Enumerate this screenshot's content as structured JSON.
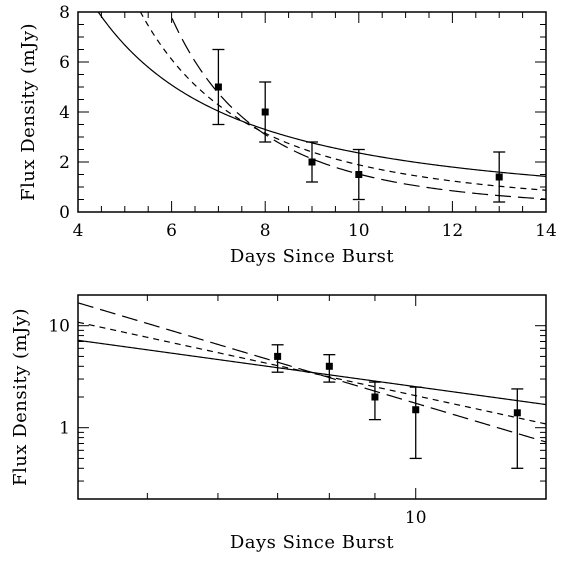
{
  "chart_data": [
    {
      "type": "scatter",
      "xlabel": "Days Since Burst",
      "ylabel": "Flux Density (mJy)",
      "xlim": [
        4,
        14
      ],
      "ylim": [
        0,
        8
      ],
      "xscale": "linear",
      "yscale": "linear",
      "x_ticks": [
        4,
        6,
        8,
        10,
        12,
        14
      ],
      "y_ticks": [
        0,
        2,
        4,
        6,
        8
      ],
      "points": [
        {
          "x": 7,
          "y": 5.0,
          "ylo": 3.5,
          "yhi": 6.5
        },
        {
          "x": 8,
          "y": 4.0,
          "ylo": 2.8,
          "yhi": 5.2
        },
        {
          "x": 9,
          "y": 2.0,
          "ylo": 1.2,
          "yhi": 2.8
        },
        {
          "x": 10,
          "y": 1.5,
          "ylo": 0.5,
          "yhi": 2.5
        },
        {
          "x": 13,
          "y": 1.4,
          "ylo": 0.4,
          "yhi": 2.4
        }
      ],
      "curves": [
        {
          "style": "solid",
          "anchor_x": 8,
          "anchor_y": 3.3,
          "index": -1.5
        },
        {
          "style": "short-dash",
          "anchor_x": 8,
          "anchor_y": 3.15,
          "index": -2.3
        },
        {
          "style": "long-dash",
          "anchor_x": 8,
          "anchor_y": 3.1,
          "index": -3.2
        }
      ],
      "grid": false,
      "legend": "none"
    },
    {
      "type": "scatter",
      "xlabel": "Days Since Burst",
      "ylabel": "Flux Density (mJy)",
      "xlim": [
        4.18,
        14
      ],
      "ylim": [
        0.2,
        20
      ],
      "xscale": "log",
      "yscale": "log",
      "x_ticks": [
        10
      ],
      "y_ticks": [
        1,
        10
      ],
      "points": [
        {
          "x": 7,
          "y": 5.0,
          "ylo": 3.5,
          "yhi": 6.5
        },
        {
          "x": 8,
          "y": 4.0,
          "ylo": 2.8,
          "yhi": 5.2
        },
        {
          "x": 9,
          "y": 2.0,
          "ylo": 1.2,
          "yhi": 2.8
        },
        {
          "x": 10,
          "y": 1.5,
          "ylo": 0.5,
          "yhi": 2.5
        },
        {
          "x": 13,
          "y": 1.4,
          "ylo": 0.4,
          "yhi": 2.4
        }
      ],
      "curves": [
        {
          "style": "solid",
          "anchor_x": 8,
          "anchor_y": 3.3,
          "index": -1.2
        },
        {
          "style": "short-dash",
          "anchor_x": 8,
          "anchor_y": 3.15,
          "index": -1.9
        },
        {
          "style": "long-dash",
          "anchor_x": 8,
          "anchor_y": 3.1,
          "index": -2.6
        }
      ],
      "grid": false,
      "legend": "none"
    }
  ]
}
